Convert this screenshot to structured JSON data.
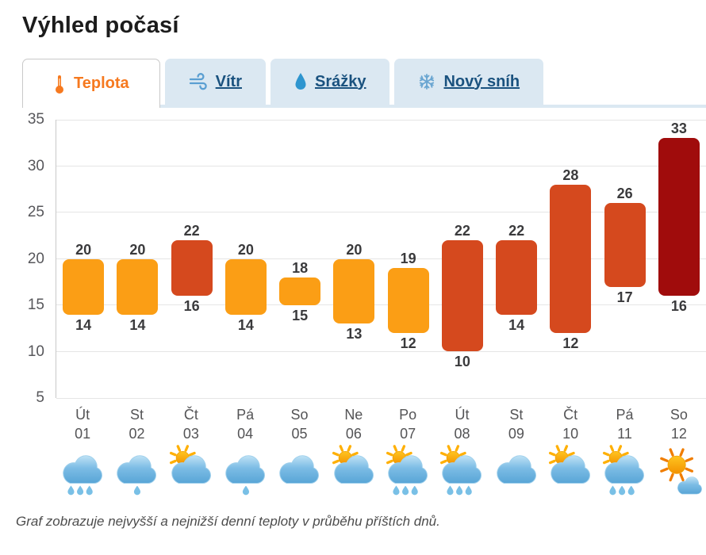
{
  "page": {
    "title": "Výhled počasí",
    "caption": "Graf zobrazuje nejvyšší a nejnižší denní teploty v průběhu příštích dnů."
  },
  "tabs": [
    {
      "label": "Teplota",
      "icon": "thermometer-icon",
      "active": true
    },
    {
      "label": "Vítr",
      "icon": "wind-icon",
      "active": false
    },
    {
      "label": "Srážky",
      "icon": "droplet-icon",
      "active": false
    },
    {
      "label": "Nový sníh",
      "icon": "snowflake-icon",
      "active": false
    }
  ],
  "colors": {
    "tab_active_text": "#f6791f",
    "tab_inactive_text": "#1a527f",
    "tab_inactive_bg": "#dbe8f2",
    "bar_warm": "#FB9E15",
    "bar_hot": "#D5491E",
    "bar_very_hot": "#A00C0C",
    "axis_text": "#57575b",
    "bar_value_text": "#3a3a3c"
  },
  "chart_data": {
    "type": "bar",
    "variant": "floating-range-bars-daily-min-max-temperature",
    "unit": "°C",
    "title": "",
    "xlabel": "",
    "ylabel": "",
    "ylim": [
      5,
      35
    ],
    "yticks": [
      35,
      30,
      25,
      20,
      15,
      10,
      5
    ],
    "grid": true,
    "legend": false,
    "days": [
      {
        "name": "Út",
        "date": "01",
        "min": 14,
        "max": 20,
        "color": "#FB9E15",
        "weather": "cloud-rain3"
      },
      {
        "name": "St",
        "date": "02",
        "min": 14,
        "max": 20,
        "color": "#FB9E15",
        "weather": "cloud-rain1"
      },
      {
        "name": "Čt",
        "date": "03",
        "min": 16,
        "max": 22,
        "color": "#D5491E",
        "weather": "sun-cloud"
      },
      {
        "name": "Pá",
        "date": "04",
        "min": 14,
        "max": 20,
        "color": "#FB9E15",
        "weather": "cloud-rain1"
      },
      {
        "name": "So",
        "date": "05",
        "min": 15,
        "max": 18,
        "color": "#FB9E15",
        "weather": "cloud"
      },
      {
        "name": "Ne",
        "date": "06",
        "min": 13,
        "max": 20,
        "color": "#FB9E15",
        "weather": "sun-cloud"
      },
      {
        "name": "Po",
        "date": "07",
        "min": 12,
        "max": 19,
        "color": "#FB9E15",
        "weather": "sun-cloud-rain3"
      },
      {
        "name": "Út",
        "date": "08",
        "min": 10,
        "max": 22,
        "color": "#D5491E",
        "weather": "sun-cloud-rain3"
      },
      {
        "name": "St",
        "date": "09",
        "min": 14,
        "max": 22,
        "color": "#D5491E",
        "weather": "cloud"
      },
      {
        "name": "Čt",
        "date": "10",
        "min": 12,
        "max": 28,
        "color": "#D5491E",
        "weather": "sun-cloud"
      },
      {
        "name": "Pá",
        "date": "11",
        "min": 17,
        "max": 26,
        "color": "#D5491E",
        "weather": "sun-cloud-rain3"
      },
      {
        "name": "So",
        "date": "12",
        "min": 16,
        "max": 33,
        "color": "#A00C0C",
        "weather": "sunny-cloud"
      }
    ]
  }
}
